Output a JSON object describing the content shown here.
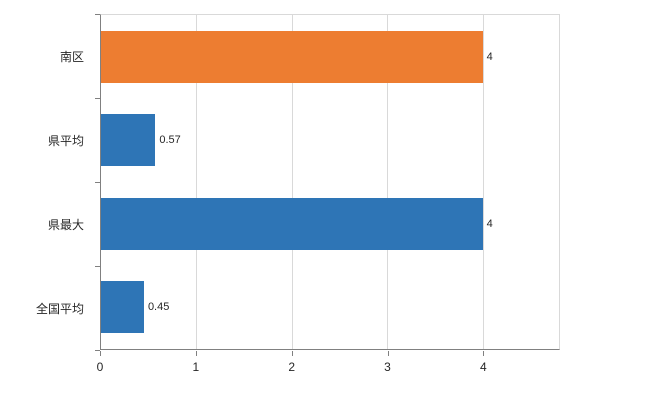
{
  "chart_data": {
    "type": "bar",
    "orientation": "horizontal",
    "title": "",
    "xlabel": "",
    "ylabel": "",
    "categories": [
      "南区",
      "県平均",
      "県最大",
      "全国平均"
    ],
    "values": [
      4,
      0.57,
      4,
      0.45
    ],
    "value_labels": [
      "4",
      "0.57",
      "4",
      "0.45"
    ],
    "bar_colors": [
      "#ED7D31",
      "#2E75B6",
      "#2E75B6",
      "#2E75B6"
    ],
    "x_ticks": [
      0,
      1,
      2,
      3,
      4
    ],
    "x_tick_labels": [
      "0",
      "1",
      "2",
      "3",
      "4"
    ],
    "xlim": [
      0,
      4.8
    ],
    "grid": true,
    "legend": "none",
    "colors": {
      "orange_accent": "#ED7D31",
      "blue_accent": "#2E75B6",
      "gridline": "#D9D9D9",
      "axis_line": "#808080",
      "text": "#262626",
      "background": "#FFFFFF"
    }
  }
}
